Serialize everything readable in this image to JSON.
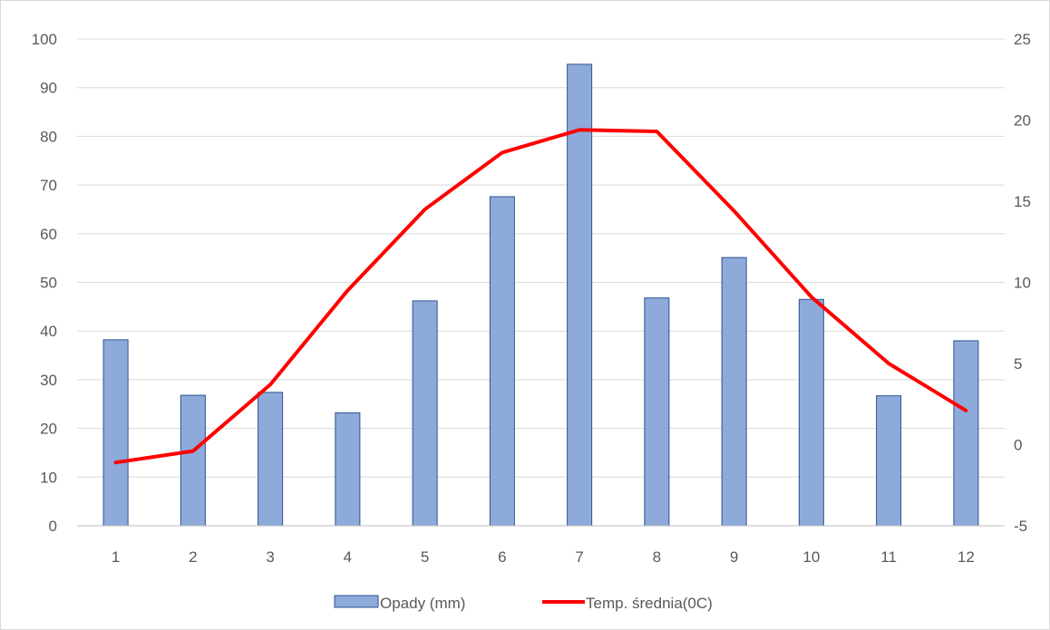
{
  "chart_data": {
    "type": "bar",
    "categories": [
      "1",
      "2",
      "3",
      "4",
      "5",
      "6",
      "7",
      "8",
      "9",
      "10",
      "11",
      "12"
    ],
    "series": [
      {
        "name": "Opady (mm)",
        "type": "bar",
        "axis": "left",
        "color": "#8eaadb",
        "stroke": "#2f528f",
        "values": [
          38.2,
          26.8,
          27.4,
          23.2,
          46.2,
          67.6,
          94.8,
          46.8,
          55.1,
          46.5,
          26.7,
          38.0
        ]
      },
      {
        "name": "Temp. średnia(0C)",
        "type": "line",
        "axis": "right",
        "color": "#ff0000",
        "values": [
          -1.1,
          -0.4,
          3.7,
          9.5,
          14.5,
          18.0,
          19.4,
          19.3,
          14.4,
          9.1,
          5.0,
          2.1
        ]
      }
    ],
    "y_left": {
      "min": 0,
      "max": 100,
      "step": 10,
      "ticks": [
        "0",
        "10",
        "20",
        "30",
        "40",
        "50",
        "60",
        "70",
        "80",
        "90",
        "100"
      ]
    },
    "y_right": {
      "min": -5,
      "max": 25,
      "step": 5,
      "ticks": [
        "-5",
        "0",
        "5",
        "10",
        "15",
        "20",
        "25"
      ]
    },
    "grid": true,
    "legend": "bottom",
    "gridColor": "#d9d9d9"
  }
}
